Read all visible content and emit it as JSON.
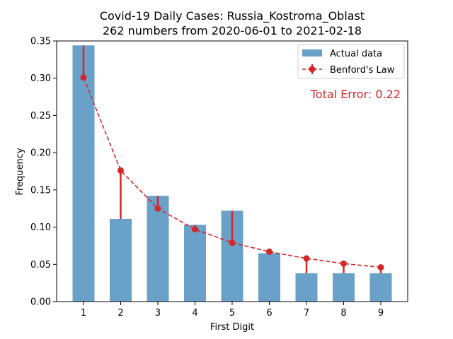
{
  "chart_data": {
    "type": "bar",
    "title_line1": "Covid-19 Daily Cases: Russia_Kostroma_Oblast",
    "title_line2": "262 numbers from 2020-06-01 to 2021-02-18",
    "xlabel": "First Digit",
    "ylabel": "Frequency",
    "categories": [
      "1",
      "2",
      "3",
      "4",
      "5",
      "6",
      "7",
      "8",
      "9"
    ],
    "ylim": [
      0,
      0.35
    ],
    "yticks": [
      "0.00",
      "0.05",
      "0.10",
      "0.15",
      "0.20",
      "0.25",
      "0.30",
      "0.35"
    ],
    "series": [
      {
        "name": "Actual data",
        "values": [
          0.344,
          0.111,
          0.142,
          0.103,
          0.122,
          0.065,
          0.038,
          0.038,
          0.038
        ],
        "color": "#6aa1c8"
      },
      {
        "name": "Benford's Law",
        "values": [
          0.301,
          0.176,
          0.125,
          0.097,
          0.079,
          0.067,
          0.058,
          0.051,
          0.046
        ],
        "color": "#d62728"
      }
    ],
    "annotation": "Total Error: 0.22",
    "annotation_color": "#d62728",
    "legend_position": "upper right",
    "grid": false
  }
}
